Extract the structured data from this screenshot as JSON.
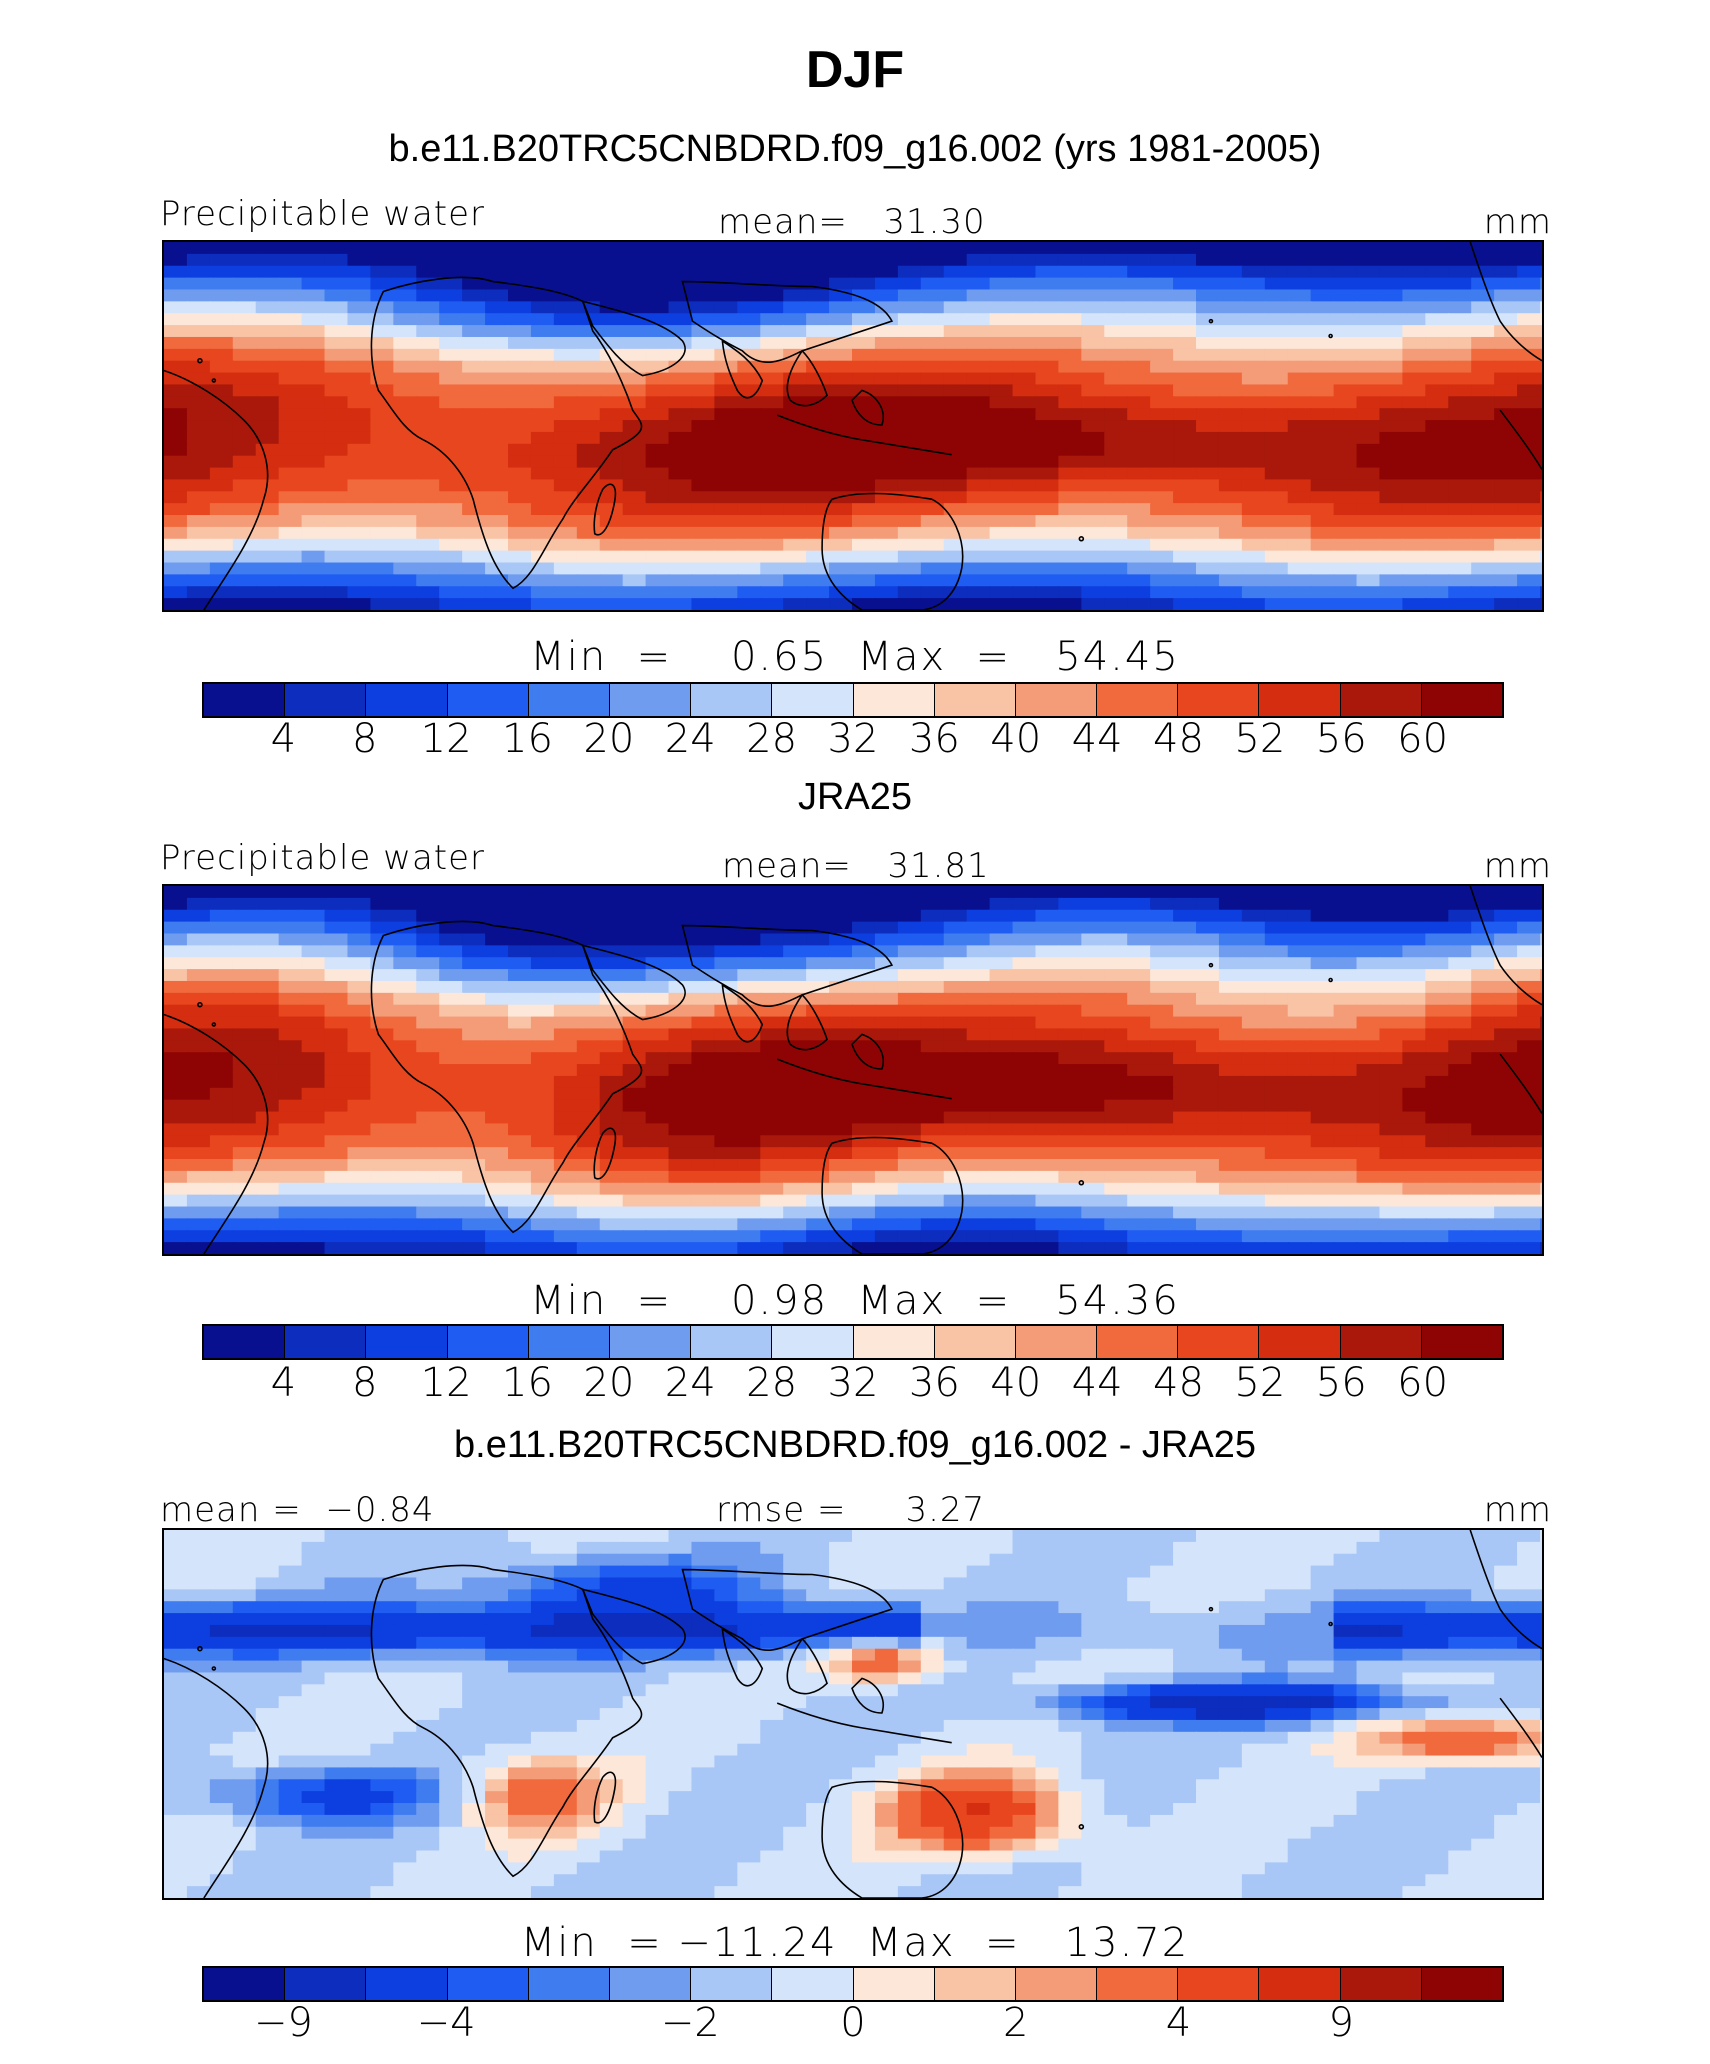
{
  "title": "DJF",
  "colors": [
    "#08108f",
    "#0c2dbd",
    "#0d3ee0",
    "#1f5cf2",
    "#3f7cf0",
    "#6f9cef",
    "#a8c6f6",
    "#d4e4fb",
    "#fde7d8",
    "#f9c3a6",
    "#f49c78",
    "#f06a3e",
    "#e8461f",
    "#d42d10",
    "#a9180a",
    "#8e0404"
  ],
  "panels": [
    {
      "case": "b.e11.B20TRC5CNBDRD.f09_g16.002 (yrs 1981-2005)",
      "left": "Precipitable water",
      "center": "mean=   31.30",
      "right": "mm",
      "minmax": "Min  =    0.65  Max  =   54.45",
      "ticks": [
        "4",
        "8",
        "12",
        "16",
        "20",
        "24",
        "28",
        "32",
        "36",
        "40",
        "44",
        "48",
        "52",
        "56",
        "60"
      ]
    },
    {
      "case": "JRA25",
      "left": "Precipitable water",
      "center": "mean=   31.81",
      "right": "mm",
      "minmax": "Min  =    0.98  Max  =   54.36",
      "ticks": [
        "4",
        "8",
        "12",
        "16",
        "20",
        "24",
        "28",
        "32",
        "36",
        "40",
        "44",
        "48",
        "52",
        "56",
        "60"
      ]
    },
    {
      "case": "b.e11.B20TRC5CNBDRD.f09_g16.002 - JRA25",
      "left": "mean =  −0.84",
      "center": "rmse =     3.27",
      "right": "mm",
      "minmax": "Min  = −11.24  Max  =   13.72",
      "ticks": [
        "−9",
        "−4",
        "−2",
        "0",
        "2",
        "4",
        "9"
      ]
    }
  ]
}
